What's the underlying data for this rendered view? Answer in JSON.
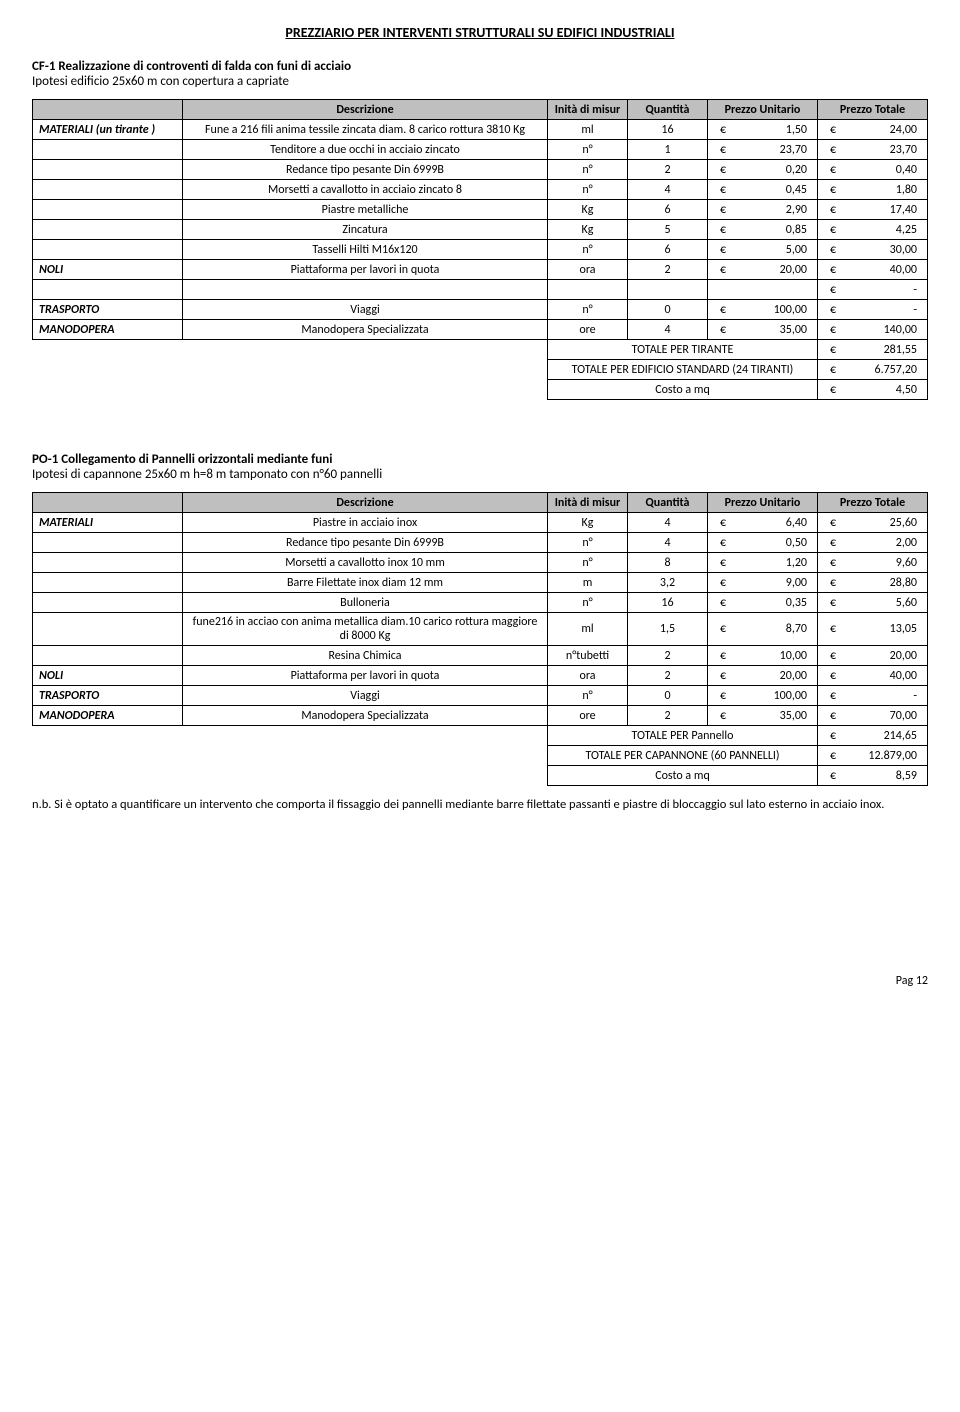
{
  "page_title": "PREZZIARIO PER INTERVENTI STRUTTURALI SU EDIFICI INDUSTRIALI",
  "section1": {
    "heading": "CF-1 Realizzazione di controventi di falda con funi di acciaio",
    "subheading": "Ipotesi edificio 25x60 m con copertura a capriate",
    "columns": [
      "Descrizione",
      "Inità di misur",
      "Quantità",
      "Prezzo Unitario",
      "Prezzo Totale"
    ],
    "rows": [
      {
        "cat": "MATERIALI (un  tirante )",
        "desc": "Fune a 216 fili anima tessile zincata diam. 8 carico rottura 3810 Kg",
        "unit": "ml",
        "qty": "16",
        "price": "1,50",
        "total": "24,00"
      },
      {
        "cat": "",
        "desc": "Tenditore a due occhi in acciaio zincato",
        "unit": "n°",
        "qty": "1",
        "price": "23,70",
        "total": "23,70"
      },
      {
        "cat": "",
        "desc": "Redance tipo pesante Din 6999B",
        "unit": "n°",
        "qty": "2",
        "price": "0,20",
        "total": "0,40"
      },
      {
        "cat": "",
        "desc": "Morsetti a cavallotto in acciaio zincato 8",
        "unit": "n°",
        "qty": "4",
        "price": "0,45",
        "total": "1,80"
      },
      {
        "cat": "",
        "desc": "Piastre metalliche",
        "unit": "Kg",
        "qty": "6",
        "price": "2,90",
        "total": "17,40"
      },
      {
        "cat": "",
        "desc": "Zincatura",
        "unit": "Kg",
        "qty": "5",
        "price": "0,85",
        "total": "4,25"
      },
      {
        "cat": "",
        "desc": "Tasselli Hilti M16x120",
        "unit": "n°",
        "qty": "6",
        "price": "5,00",
        "total": "30,00"
      },
      {
        "cat": "NOLI",
        "desc": "Piattaforma per lavori in quota",
        "unit": "ora",
        "qty": "2",
        "price": "20,00",
        "total": "40,00"
      },
      {
        "cat": "",
        "desc": "",
        "unit": "",
        "qty": "",
        "price": "",
        "total": "-"
      },
      {
        "cat": "TRASPORTO",
        "desc": "Viaggi",
        "unit": "n°",
        "qty": "0",
        "price": "100,00",
        "total": "-"
      },
      {
        "cat": "MANODOPERA",
        "desc": "Manodopera Specializzata",
        "unit": "ore",
        "qty": "4",
        "price": "35,00",
        "total": "140,00"
      }
    ],
    "summary": [
      {
        "label": "TOTALE PER TIRANTE",
        "total": "281,55"
      },
      {
        "label": "TOTALE PER EDIFICIO STANDARD  (24 TIRANTI)",
        "total": "6.757,20"
      },
      {
        "label": "Costo a mq",
        "total": "4,50"
      }
    ]
  },
  "section2": {
    "heading": "PO-1 Collegamento di Pannelli orizzontali mediante funi",
    "subheading": "Ipotesi di capannone 25x60 m h=8 m tamponato con n°60 pannelli",
    "columns": [
      "Descrizione",
      "Inità di misur",
      "Quantità",
      "Prezzo Unitario",
      "Prezzo Totale"
    ],
    "rows": [
      {
        "cat": "MATERIALI",
        "desc": "Piastre in acciaio inox",
        "unit": "Kg",
        "qty": "4",
        "price": "6,40",
        "total": "25,60"
      },
      {
        "cat": "",
        "desc": "Redance tipo pesante Din 6999B",
        "unit": "n°",
        "qty": "4",
        "price": "0,50",
        "total": "2,00"
      },
      {
        "cat": "",
        "desc": "Morsetti a cavallotto inox 10 mm",
        "unit": "n°",
        "qty": "8",
        "price": "1,20",
        "total": "9,60"
      },
      {
        "cat": "",
        "desc": "Barre Filettate inox diam 12 mm",
        "unit": "m",
        "qty": "3,2",
        "price": "9,00",
        "total": "28,80"
      },
      {
        "cat": "",
        "desc": "Bulloneria",
        "unit": "n°",
        "qty": "16",
        "price": "0,35",
        "total": "5,60"
      },
      {
        "cat": "",
        "desc": "fune216 in acciao con anima metallica diam.10   carico rottura maggiore di 8000 Kg",
        "unit": "ml",
        "qty": "1,5",
        "price": "8,70",
        "total": "13,05"
      },
      {
        "cat": "",
        "desc": "Resina Chimica",
        "unit": "n°tubetti",
        "qty": "2",
        "price": "10,00",
        "total": "20,00"
      },
      {
        "cat": "NOLI",
        "desc": "Piattaforma per lavori in quota",
        "unit": "ora",
        "qty": "2",
        "price": "20,00",
        "total": "40,00"
      },
      {
        "cat": "TRASPORTO",
        "desc": "Viaggi",
        "unit": "n°",
        "qty": "0",
        "price": "100,00",
        "total": "-"
      },
      {
        "cat": "MANODOPERA",
        "desc": "Manodopera Specializzata",
        "unit": "ore",
        "qty": "2",
        "price": "35,00",
        "total": "70,00"
      }
    ],
    "summary": [
      {
        "label": "TOTALE PER Pannello",
        "total": "214,65"
      },
      {
        "label": "TOTALE PER CAPANNONE (60 PANNELLI)",
        "total": "12.879,00"
      },
      {
        "label": "Costo a mq",
        "total": "8,59"
      }
    ]
  },
  "nb_text": "n.b. Si è optato a quantificare un intervento che comporta il fissaggio dei pannelli mediante barre filettate passanti e piastre di bloccaggio sul lato esterno in acciaio inox.",
  "footer": "Pag 12"
}
